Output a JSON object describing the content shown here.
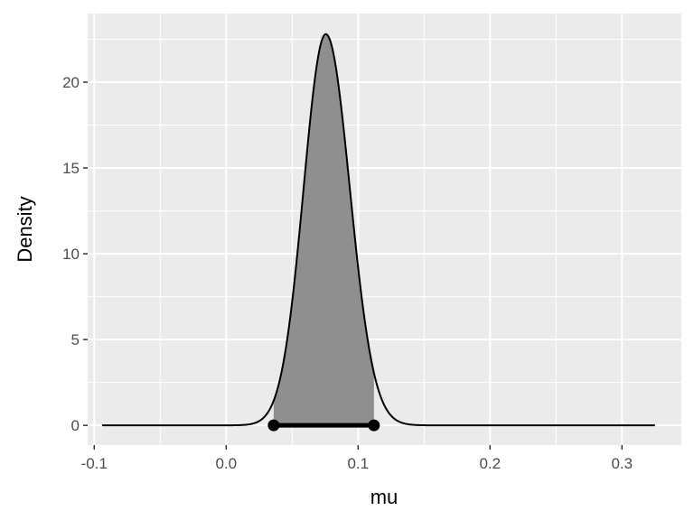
{
  "chart_data": {
    "type": "area",
    "xlabel": "mu",
    "ylabel": "Density",
    "xlim": [
      -0.105,
      0.345
    ],
    "ylim": [
      -1.15,
      24.0
    ],
    "x_ticks": [
      -0.1,
      0.0,
      0.1,
      0.2,
      0.3
    ],
    "x_tick_labels": [
      "-0.1",
      "0.0",
      "0.1",
      "0.2",
      "0.3"
    ],
    "y_ticks": [
      0,
      5,
      10,
      15,
      20
    ],
    "y_tick_labels": [
      "0",
      "5",
      "10",
      "15",
      "20"
    ],
    "grid": true,
    "density": {
      "range": [
        -0.094,
        0.325
      ],
      "mean": 0.0755,
      "sd_left": 0.0168,
      "sd_right": 0.0182,
      "peak": 22.8,
      "sample_x": [
        -0.094,
        0.0,
        0.02,
        0.04,
        0.06,
        0.0755,
        0.09,
        0.11,
        0.13,
        0.15,
        0.2,
        0.325
      ],
      "sample_y": [
        0.0,
        0.09,
        0.93,
        4.9,
        14.5,
        22.8,
        16.0,
        5.6,
        1.0,
        0.1,
        0.0,
        0.0
      ]
    },
    "shaded_interval": [
      0.036,
      0.112
    ],
    "interval_line": {
      "x_start": 0.036,
      "x_end": 0.112,
      "y": 0
    },
    "colors": {
      "panel_background": "#ebebeb",
      "grid_major": "#ffffff",
      "fill": "#8f8f8f",
      "curve": "#000000"
    }
  }
}
